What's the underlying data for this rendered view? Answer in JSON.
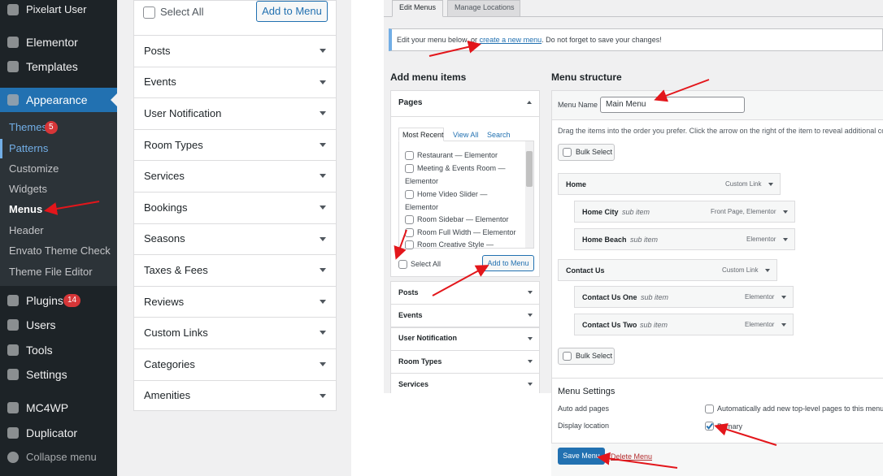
{
  "sidebar": {
    "user": "Pixelart User",
    "top_items": [
      "Elementor",
      "Templates"
    ],
    "current": "Appearance",
    "submenu": [
      {
        "label": "Themes",
        "badge": 5
      },
      {
        "label": "Patterns"
      },
      {
        "label": "Customize"
      },
      {
        "label": "Widgets"
      },
      {
        "label": "Menus"
      },
      {
        "label": "Header"
      },
      {
        "label": "Envato Theme Check"
      },
      {
        "label": "Theme File Editor"
      }
    ],
    "bottom_items": [
      {
        "label": "Plugins",
        "badge": 14
      },
      {
        "label": "Users"
      },
      {
        "label": "Tools"
      },
      {
        "label": "Settings"
      },
      {
        "label": "MC4WP"
      },
      {
        "label": "Duplicator"
      }
    ],
    "collapse": "Collapse menu"
  },
  "left_panel": {
    "select_all": "Select All",
    "add_button": "Add to Menu",
    "sections": [
      "Posts",
      "Events",
      "User Notification",
      "Room Types",
      "Services",
      "Bookings",
      "Seasons",
      "Taxes & Fees",
      "Reviews",
      "Custom Links",
      "Categories",
      "Amenities"
    ]
  },
  "editor": {
    "tabs": [
      "Edit Menus",
      "Manage Locations"
    ],
    "notice": {
      "before": "Edit your menu below, or ",
      "link": "create a new menu",
      "after": ". Do not forget to save your changes!"
    },
    "add_items_title": "Add menu items",
    "pages": {
      "title": "Pages",
      "tabs": [
        "Most Recent",
        "View All",
        "Search"
      ],
      "items": [
        "Restaurant — Elementor",
        "Meeting & Events Room — Elementor",
        "Home Video Slider — Elementor",
        "Room Sidebar — Elementor",
        "Room Full Width — Elementor",
        "Room Creative Style —"
      ],
      "select_all": "Select All",
      "add_button": "Add to Menu"
    },
    "sections": [
      "Posts",
      "Events",
      "User Notification",
      "Room Types",
      "Services"
    ],
    "structure_title": "Menu structure",
    "menu_name_label": "Menu Name",
    "menu_name": "Main Menu",
    "instructions": "Drag the items into the order you prefer. Click the arrow on the right of the item to reveal additional confi",
    "bulk_select": "Bulk Select",
    "menu_items": [
      {
        "title": "Home",
        "type": "Custom Link"
      },
      {
        "title": "Home City",
        "sub": "sub item",
        "type": "Front Page, Elementor"
      },
      {
        "title": "Home Beach",
        "sub": "sub item",
        "type": "Elementor"
      },
      {
        "title": "Contact Us",
        "type": "Custom Link"
      },
      {
        "title": "Contact Us One",
        "sub": "sub item",
        "type": "Elementor"
      },
      {
        "title": "Contact Us Two",
        "sub": "sub item",
        "type": "Elementor"
      }
    ],
    "settings": {
      "title": "Menu Settings",
      "auto_add_label": "Auto add pages",
      "auto_add_text": "Automatically add new top-level pages to this menu",
      "auto_add_checked": false,
      "display_label": "Display location",
      "display_text": "Primary",
      "display_checked": true
    },
    "save": "Save Menu",
    "delete": "Delete Menu"
  }
}
